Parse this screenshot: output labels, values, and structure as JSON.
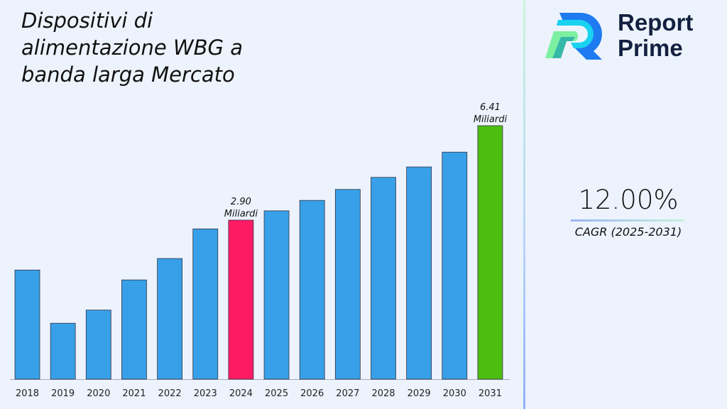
{
  "chart_data": {
    "type": "bar",
    "title": "Dispositivi di alimentazione WBG a banda larga Mercato",
    "categories": [
      "2018",
      "2019",
      "2020",
      "2021",
      "2022",
      "2023",
      "2024",
      "2025",
      "2026",
      "2027",
      "2028",
      "2029",
      "2030",
      "2031"
    ],
    "values": [
      1.99,
      1.02,
      1.26,
      1.81,
      2.2,
      2.74,
      2.9,
      3.07,
      3.26,
      3.46,
      3.68,
      3.87,
      4.14,
      6.41
    ],
    "annotations": [
      {
        "category": "2024",
        "value_text": "2.90",
        "unit_text": "Miliardi"
      },
      {
        "category": "2031",
        "value_text": "6.41",
        "unit_text": "Miliardi"
      }
    ],
    "colors": {
      "default": "#38a0e8",
      "highlight_2024": "#ff1a66",
      "highlight_2031": "#4cbe10"
    },
    "grid": false,
    "xlabel": "",
    "ylabel": ""
  },
  "brand": {
    "line1": "Report",
    "line2": "Prime"
  },
  "cagr": {
    "value": "12.00%",
    "label": "CAGR (2025-2031)"
  }
}
